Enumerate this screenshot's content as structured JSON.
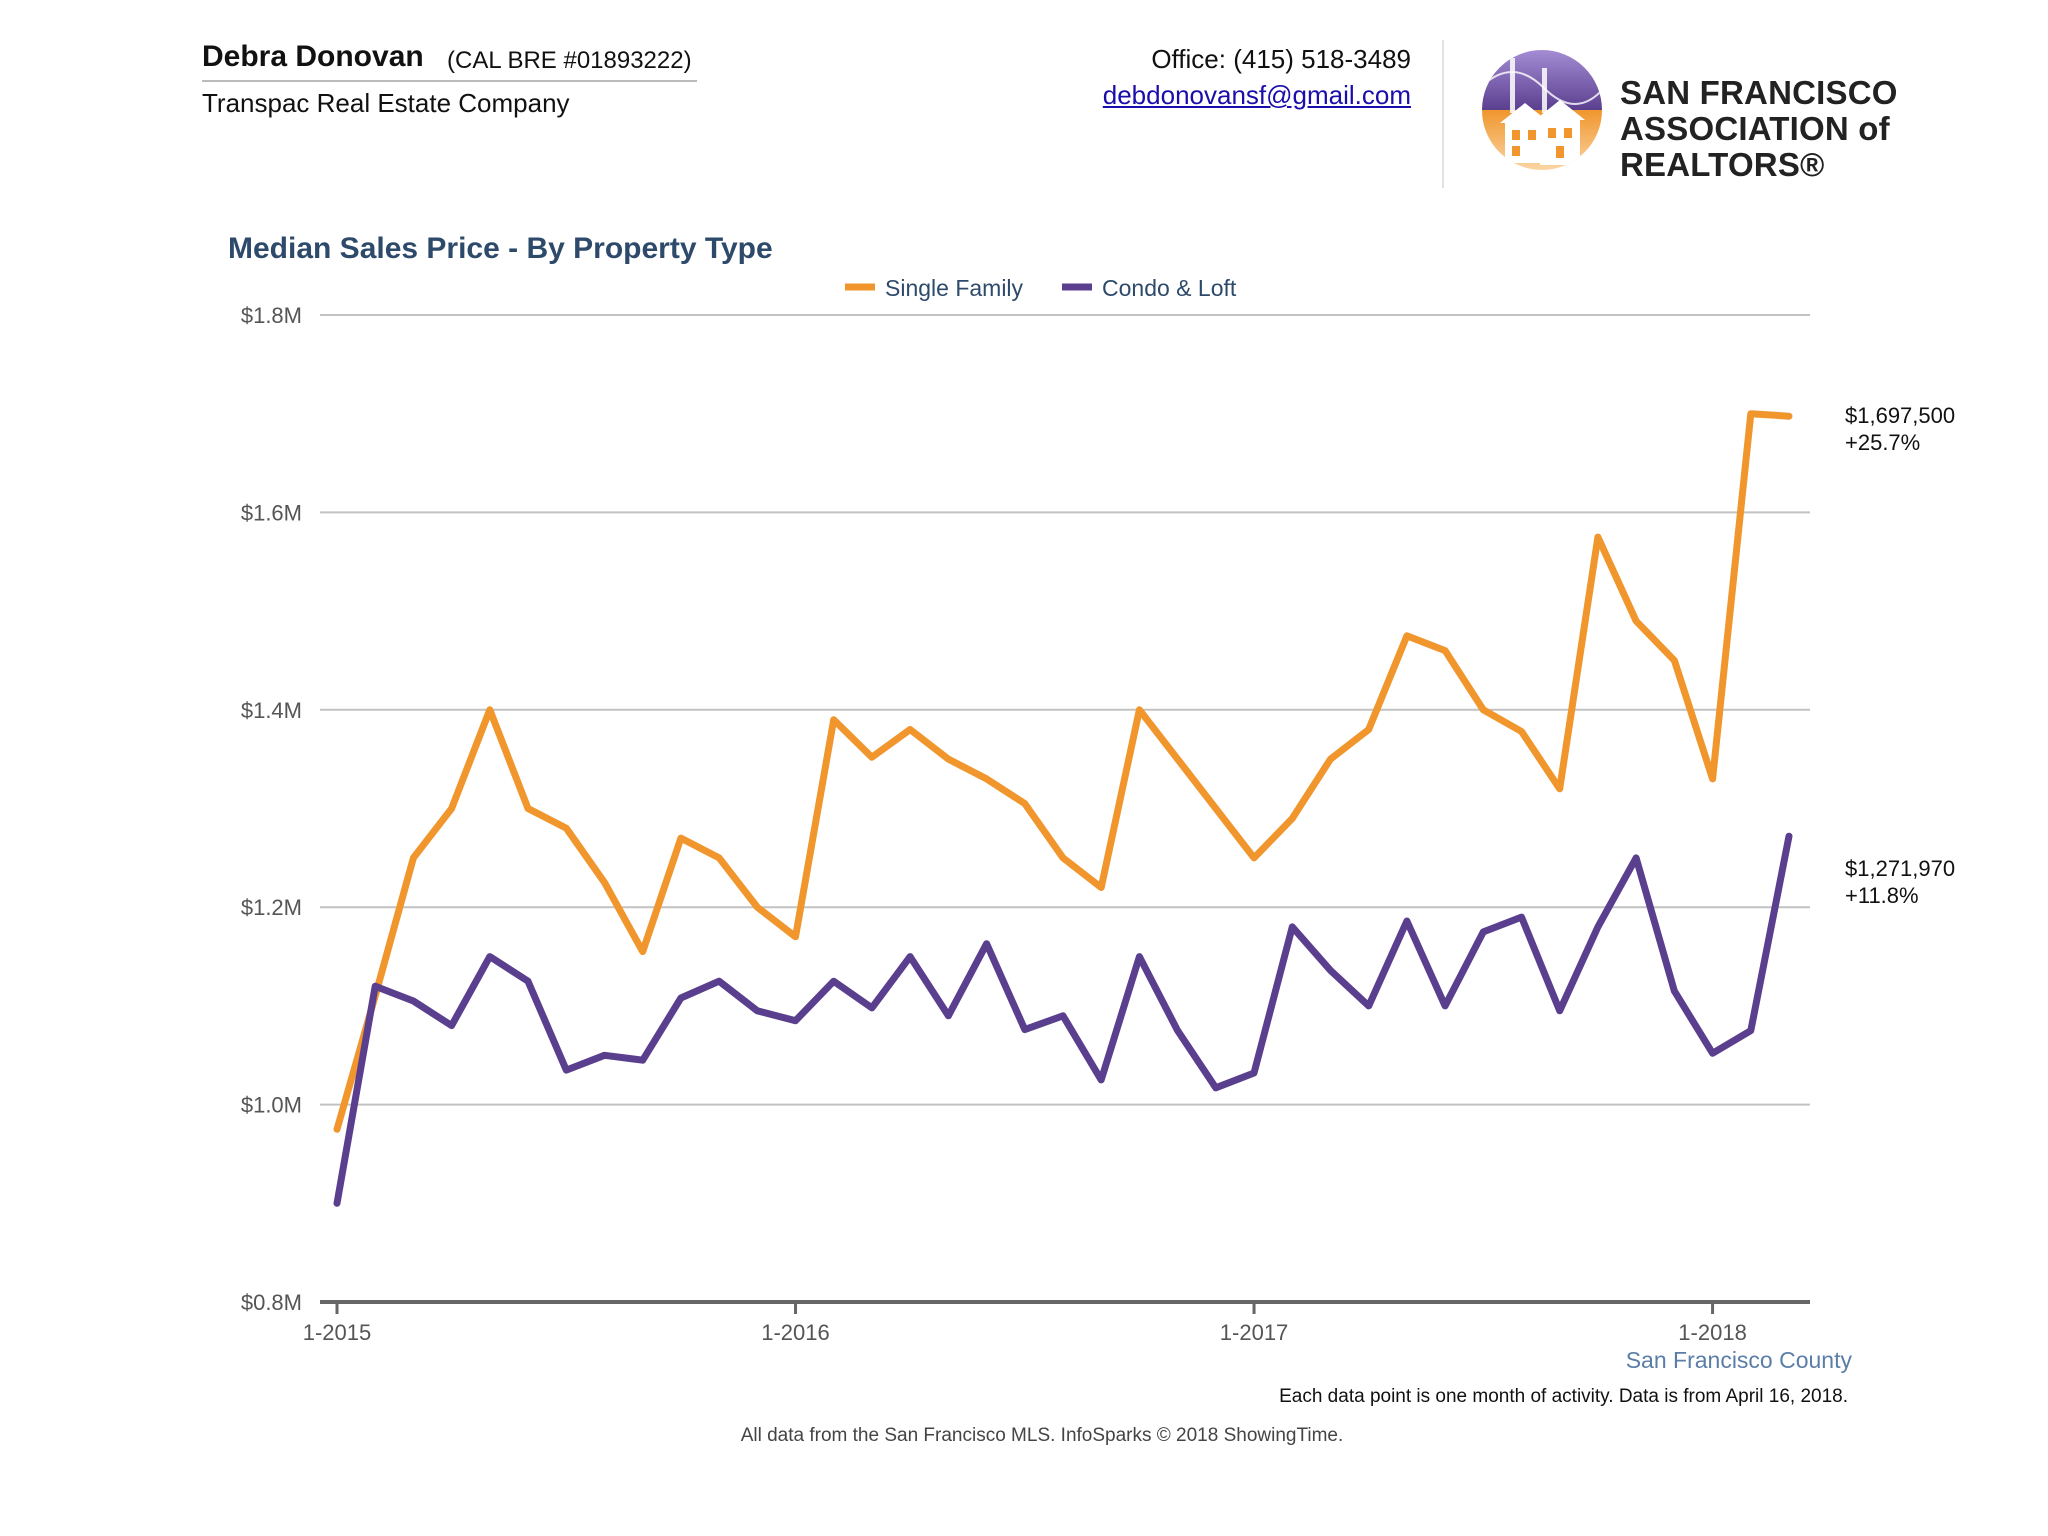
{
  "header": {
    "agent_name": "Debra Donovan",
    "agent_license": "(CAL BRE #01893222)",
    "company": "Transpac Real Estate Company",
    "office_phone": "Office: (415) 518-3489",
    "email": "debdonovansf@gmail.com",
    "logo": {
      "line1": "SAN FRANCISCO",
      "line2": "ASSOCIATION of REALTORS®",
      "icon": "golden-gate-houses-logo-icon",
      "colors": {
        "purple": "#6a4fa3",
        "orange": "#f0962d"
      }
    }
  },
  "chart_data": {
    "type": "line",
    "title": "Median Sales Price - By Property Type",
    "x_tick_labels": [
      "1-2015",
      "1-2016",
      "1-2017",
      "1-2018"
    ],
    "x_start": "2015-01",
    "x_end": "2018-03",
    "y_tick_labels": [
      "$0.8M",
      "$1.0M",
      "$1.2M",
      "$1.4M",
      "$1.6M",
      "$1.8M"
    ],
    "ylim": [
      0.8,
      1.8
    ],
    "y_unit": "millions USD",
    "grid": true,
    "legend_position": "top-center",
    "series": [
      {
        "name": "Single Family",
        "color": "#f0962d",
        "values": [
          0.975,
          1.11,
          1.25,
          1.3,
          1.4,
          1.3,
          1.28,
          1.225,
          1.155,
          1.27,
          1.25,
          1.2,
          1.17,
          1.39,
          1.352,
          1.38,
          1.35,
          1.33,
          1.305,
          1.25,
          1.22,
          1.4,
          1.35,
          1.3,
          1.25,
          1.29,
          1.35,
          1.38,
          1.475,
          1.46,
          1.4,
          1.378,
          1.32,
          1.575,
          1.49,
          1.45,
          1.33,
          1.7,
          1.6975
        ],
        "end_label_value": "$1,697,500",
        "end_label_change": "+25.7%"
      },
      {
        "name": "Condo & Loft",
        "color": "#5b3f8f",
        "values": [
          0.9,
          1.12,
          1.105,
          1.08,
          1.15,
          1.125,
          1.035,
          1.05,
          1.045,
          1.108,
          1.125,
          1.095,
          1.085,
          1.125,
          1.098,
          1.15,
          1.09,
          1.163,
          1.076,
          1.09,
          1.025,
          1.15,
          1.075,
          1.017,
          1.032,
          1.18,
          1.136,
          1.1,
          1.186,
          1.1,
          1.175,
          1.19,
          1.095,
          1.18,
          1.25,
          1.115,
          1.052,
          1.075,
          1.27197
        ],
        "end_label_value": "$1,271,970",
        "end_label_change": "+11.8%"
      }
    ],
    "region_label": "San Francisco County",
    "note": "Each data point is one month of activity. Data is from April 16, 2018."
  },
  "footer": "All data from the San Francisco MLS. InfoSparks © 2018 ShowingTime."
}
